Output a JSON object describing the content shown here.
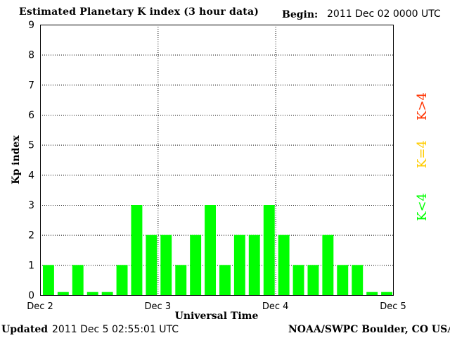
{
  "header": {
    "title": "Estimated Planetary K index (3 hour data)",
    "begin_label": "Begin:",
    "begin_value": "2011 Dec 02 0000 UTC"
  },
  "footer": {
    "updated_label": "Updated",
    "updated_value": "2011 Dec  5 02:55:01 UTC",
    "credit": "NOAA/SWPC Boulder, CO USA"
  },
  "legend": [
    {
      "label": "K<4",
      "color": "#00ff00"
    },
    {
      "label": "K=4",
      "color": "#ffcc00"
    },
    {
      "label": "K>4",
      "color": "#ff3300"
    }
  ],
  "chart_data": {
    "type": "bar",
    "title": "Estimated Planetary K index (3 hour data)",
    "xlabel": "Universal Time",
    "ylabel": "Kp index",
    "ylim": [
      0,
      9
    ],
    "yticks": [
      0,
      1,
      2,
      3,
      4,
      5,
      6,
      7,
      8,
      9
    ],
    "x_tick_labels": [
      "Dec 2",
      "Dec 3",
      "Dec 4",
      "Dec 5"
    ],
    "bar_color": "#00ff00",
    "grid": "dotted",
    "values": [
      1,
      0,
      1,
      0,
      0,
      1,
      3,
      2,
      2,
      1,
      2,
      3,
      1,
      2,
      2,
      3,
      2,
      1,
      1,
      2,
      1,
      1,
      0,
      0
    ]
  }
}
